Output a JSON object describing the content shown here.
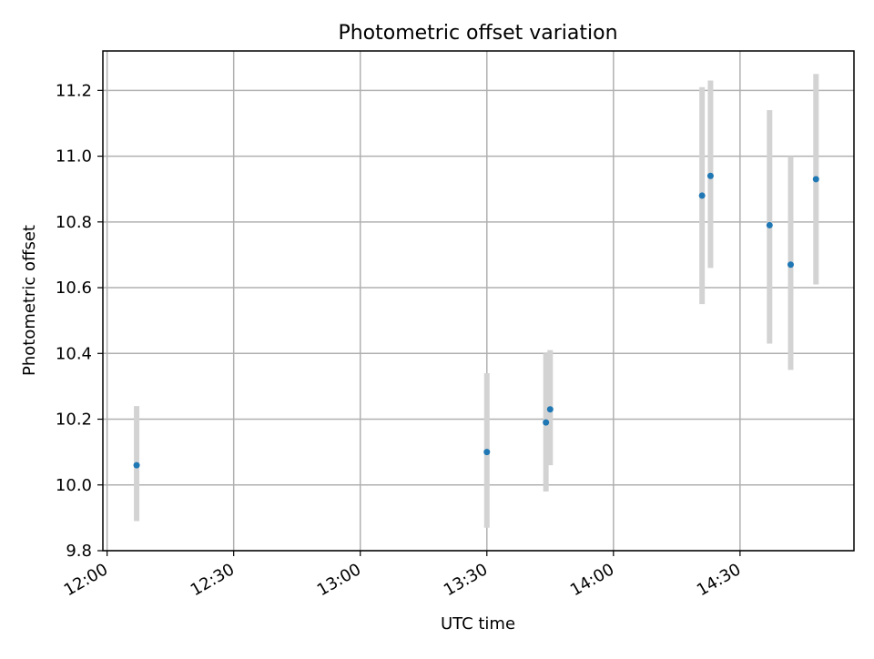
{
  "chart_data": {
    "type": "scatter",
    "title": "Photometric offset variation",
    "xlabel": "UTC time",
    "ylabel": "Photometric offset",
    "x_unit": "time_of_day",
    "xlim": [
      "11:59",
      "14:57"
    ],
    "ylim": [
      9.8,
      11.32
    ],
    "x_ticks": [
      "12:00",
      "12:30",
      "13:00",
      "13:30",
      "14:00",
      "14:30"
    ],
    "y_ticks": [
      9.8,
      10.0,
      10.2,
      10.4,
      10.6,
      10.8,
      11.0,
      11.2
    ],
    "y_tick_labels": [
      "9.8",
      "10.0",
      "10.2",
      "10.4",
      "10.6",
      "10.8",
      "11.0",
      "11.2"
    ],
    "grid": true,
    "series": [
      {
        "marker_color": "#1f77b4",
        "errorbar_color": "#d3d3d3",
        "points": [
          {
            "x": "12:07",
            "y": 10.06,
            "yerr_low": 9.89,
            "yerr_high": 10.24
          },
          {
            "x": "13:30",
            "y": 10.1,
            "yerr_low": 9.87,
            "yerr_high": 10.34
          },
          {
            "x": "13:44",
            "y": 10.19,
            "yerr_low": 9.98,
            "yerr_high": 10.4
          },
          {
            "x": "13:45",
            "y": 10.23,
            "yerr_low": 10.06,
            "yerr_high": 10.41
          },
          {
            "x": "14:21",
            "y": 10.88,
            "yerr_low": 10.55,
            "yerr_high": 11.21
          },
          {
            "x": "14:23",
            "y": 10.94,
            "yerr_low": 10.66,
            "yerr_high": 11.23
          },
          {
            "x": "14:37",
            "y": 10.79,
            "yerr_low": 10.43,
            "yerr_high": 11.14
          },
          {
            "x": "14:42",
            "y": 10.67,
            "yerr_low": 10.35,
            "yerr_high": 11.0
          },
          {
            "x": "14:48",
            "y": 10.93,
            "yerr_low": 10.61,
            "yerr_high": 11.25
          }
        ]
      }
    ]
  }
}
